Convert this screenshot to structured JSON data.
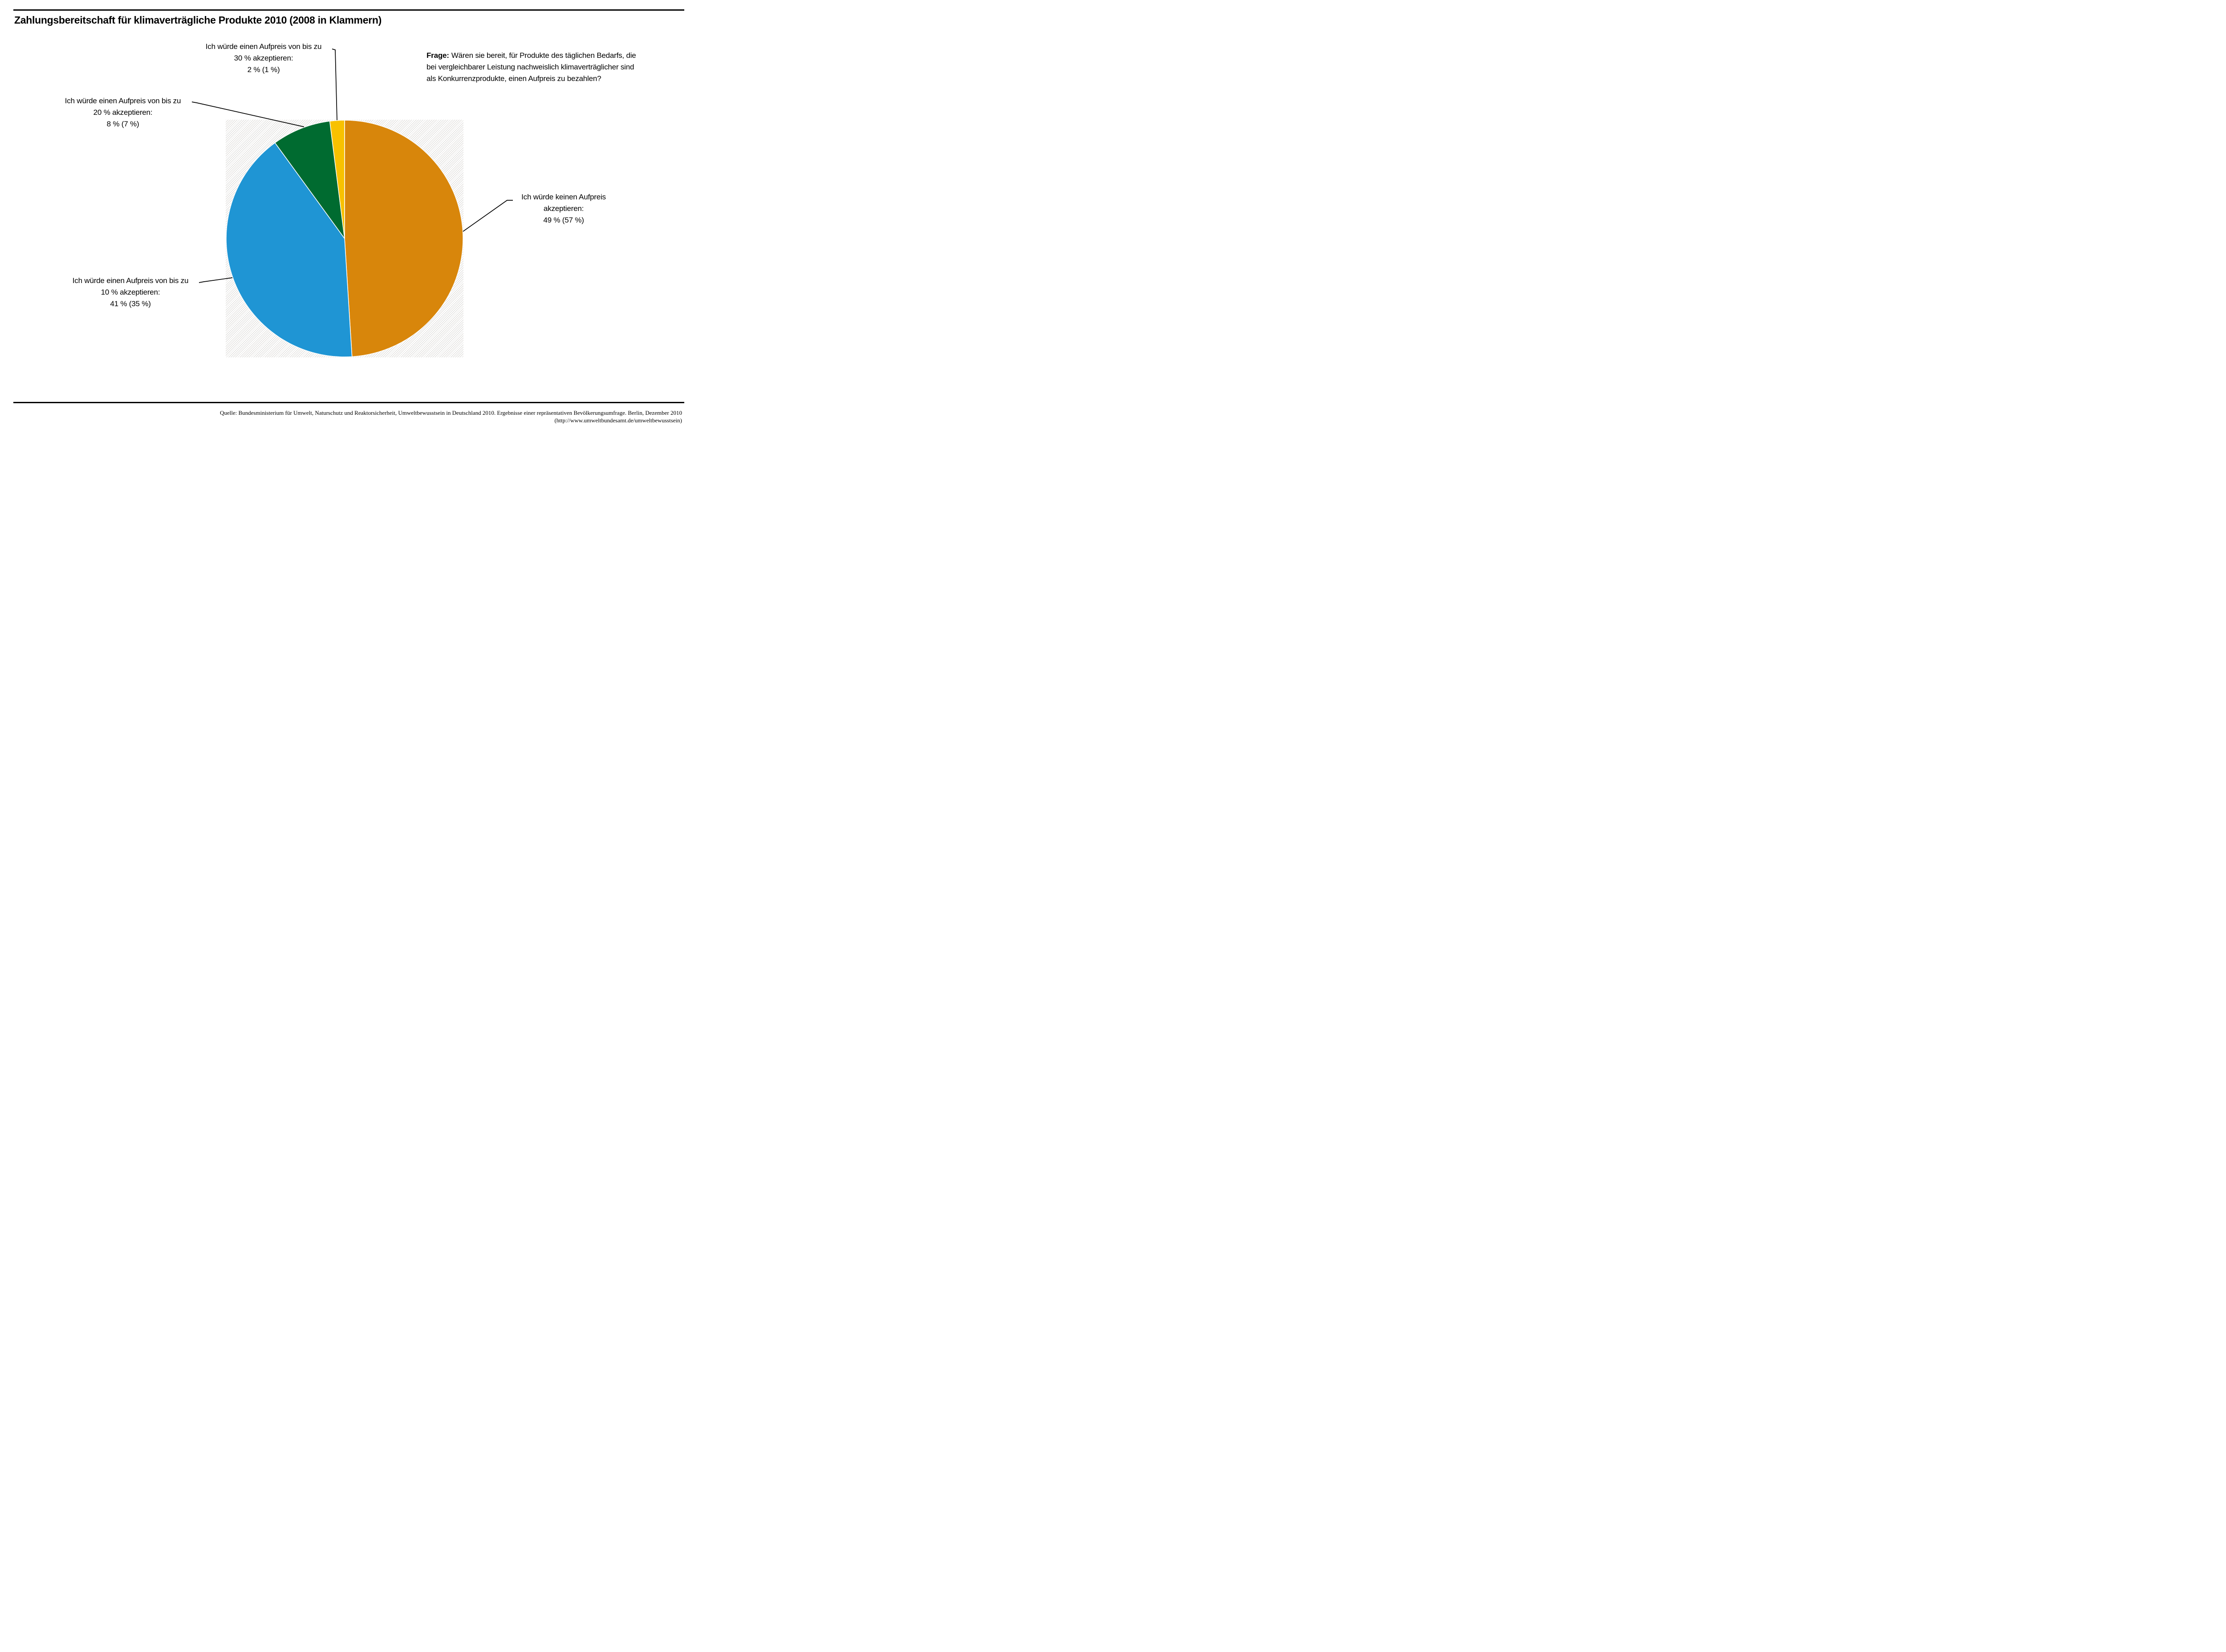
{
  "title": "Zahlungsbereitschaft für klimaverträgliche Produkte 2010 (2008 in Klammern)",
  "question": {
    "prefix": "Frage:",
    "lines": [
      "Wären sie bereit, für Produkte des täglichen Bedarfs, die",
      "bei vergleichbarer Leistung nachweislich klimaverträglicher sind",
      "als Konkurrenzprodukte, einen Aufpreis zu bezahlen?"
    ]
  },
  "source": {
    "line1": "Quelle: Bundesministerium für Umwelt, Naturschutz und Reaktorsicherheit, Umweltbewusstsein in Deutschland 2010. Ergebnisse einer repräsentativen Bevölkerungsumfrage. Berlin, Dezember 2010",
    "line2": "(http://www.umweltbundesamt.de/umweltbewusstsein)"
  },
  "chart_data": {
    "type": "pie",
    "title": "Zahlungsbereitschaft für klimaverträgliche Produkte 2010 (2008 in Klammern)",
    "unit": "%",
    "year_main": "2010",
    "year_in_parentheses": "2008",
    "start_angle_deg": -90,
    "direction": "clockwise",
    "legend_position": "callout-labels",
    "grid": false,
    "segments": [
      {
        "id": "kein-aufpreis",
        "label_lines": [
          "Ich würde keinen Aufpreis",
          "akzeptieren:",
          "49 % (57 %)"
        ],
        "value_2010": 49,
        "value_2008": 57,
        "color": "#D8860B"
      },
      {
        "id": "bis-10-prozent",
        "label_lines": [
          "Ich würde einen Aufpreis von bis zu",
          "10 % akzeptieren:",
          "41 % (35 %)"
        ],
        "value_2010": 41,
        "value_2008": 35,
        "color": "#1F95D4"
      },
      {
        "id": "bis-20-prozent",
        "label_lines": [
          "Ich würde einen Aufpreis von bis zu",
          "20 % akzeptieren:",
          "8 % (7 %)"
        ],
        "value_2010": 8,
        "value_2008": 7,
        "color": "#006B30"
      },
      {
        "id": "bis-30-prozent",
        "label_lines": [
          "Ich würde einen Aufpreis von bis zu",
          "30 % akzeptieren:",
          "2 % (1 %)"
        ],
        "value_2010": 2,
        "value_2008": 1,
        "color": "#F8C100"
      }
    ]
  }
}
